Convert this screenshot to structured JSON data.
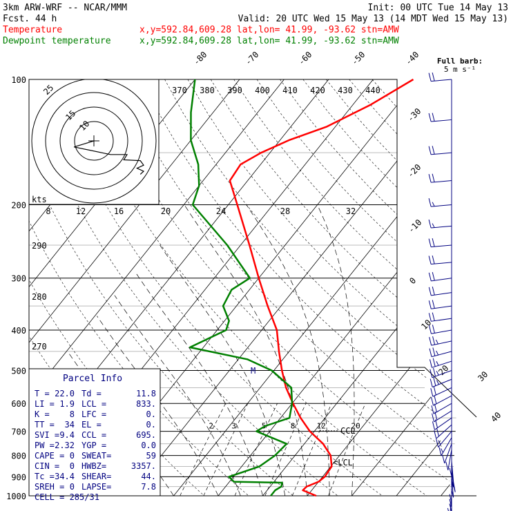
{
  "header": {
    "model": "3km ARW-WRF -- NCAR/MMM",
    "fcst": "Fcst.   44 h",
    "init": "Init: 00 UTC Tue 14 May 13",
    "valid": "Valid: 20 UTC Wed 15 May 13 (14 MDT Wed 15 May 13)",
    "temp_label": "Temperature",
    "dew_label": "Dewpoint temperature",
    "temp_loc": "x,y=592.84,609.28   lat,lon= 41.99, -93.62  stn=AMW",
    "dew_loc": "x,y=592.84,609.28   lat,lon= 41.99, -93.62  stn=AMW",
    "barb_key_1": "Full barb:",
    "barb_key_2": "5 m s⁻¹"
  },
  "colors": {
    "temperature": "#ff0000",
    "dewpoint": "#008000",
    "text_blue": "#000080",
    "header_text": "#000000"
  },
  "chart_data": {
    "type": "line",
    "pressure_levels": [
      "100",
      "200",
      "300",
      "400",
      "500",
      "600",
      "700",
      "800",
      "900",
      "1000"
    ],
    "isotherm_labels": [
      "-80",
      "-70",
      "-60",
      "-50",
      "-40",
      "-30",
      "-20",
      "-10",
      "0",
      "10",
      "20",
      "30",
      "40"
    ],
    "theta_labels": [
      "370",
      "380",
      "390",
      "400",
      "410",
      "420",
      "430",
      "440"
    ],
    "theta_left_labels": [
      "290",
      "280",
      "270"
    ],
    "mixing_ratio_labels": [
      "2",
      "3",
      "5",
      "8",
      "12",
      "20"
    ],
    "hodo_speed_labels": [
      "8",
      "12",
      "16",
      "20",
      "24",
      "28",
      "32"
    ],
    "hodo_ring_labels": [
      "25",
      "15",
      "10"
    ],
    "hodo_unit": "kts",
    "series": [
      {
        "name": "Temperature",
        "points": [
          [
            1000,
            22.0
          ],
          [
            970,
            18.0
          ],
          [
            950,
            18.2
          ],
          [
            925,
            20.0
          ],
          [
            900,
            20.5
          ],
          [
            850,
            20.2
          ],
          [
            800,
            18.0
          ],
          [
            750,
            14.2
          ],
          [
            700,
            9.0
          ],
          [
            650,
            4.5
          ],
          [
            600,
            0.2
          ],
          [
            550,
            -4.2
          ],
          [
            500,
            -8.2
          ],
          [
            450,
            -12.3
          ],
          [
            400,
            -16.6
          ],
          [
            350,
            -23.0
          ],
          [
            300,
            -30.0
          ],
          [
            250,
            -38.0
          ],
          [
            200,
            -48.0
          ],
          [
            175,
            -54.0
          ],
          [
            160,
            -54.5
          ],
          [
            150,
            -52.0
          ],
          [
            140,
            -48.0
          ],
          [
            130,
            -42.0
          ],
          [
            115,
            -36.0
          ],
          [
            100,
            -31.0
          ]
        ]
      },
      {
        "name": "Dewpoint temperature",
        "points": [
          [
            1000,
            11.8
          ],
          [
            970,
            11.8
          ],
          [
            950,
            12.5
          ],
          [
            930,
            12.0
          ],
          [
            925,
            1.0
          ],
          [
            900,
            -1.0
          ],
          [
            850,
            4.0
          ],
          [
            800,
            5.5
          ],
          [
            750,
            6.0
          ],
          [
            700,
            -3.0
          ],
          [
            680,
            -2.0
          ],
          [
            650,
            2.0
          ],
          [
            600,
            0.0
          ],
          [
            550,
            -3.0
          ],
          [
            500,
            -10.5
          ],
          [
            470,
            -18.0
          ],
          [
            440,
            -33.0
          ],
          [
            400,
            -28.0
          ],
          [
            380,
            -29.0
          ],
          [
            350,
            -33.0
          ],
          [
            320,
            -34.0
          ],
          [
            300,
            -32.0
          ],
          [
            250,
            -43.0
          ],
          [
            200,
            -58.0
          ],
          [
            180,
            -60.0
          ],
          [
            160,
            -64.0
          ],
          [
            140,
            -70.0
          ],
          [
            120,
            -75.0
          ],
          [
            100,
            -80.0
          ]
        ]
      }
    ],
    "wind_barbs_mps": [
      [
        100,
        265,
        22
      ],
      [
        125,
        265,
        22
      ],
      [
        150,
        265,
        22
      ],
      [
        175,
        265,
        20
      ],
      [
        200,
        265,
        17
      ],
      [
        225,
        265,
        15
      ],
      [
        250,
        265,
        20
      ],
      [
        275,
        265,
        22
      ],
      [
        300,
        262,
        22
      ],
      [
        325,
        262,
        22
      ],
      [
        350,
        262,
        22
      ],
      [
        375,
        262,
        22
      ],
      [
        400,
        260,
        22
      ],
      [
        425,
        258,
        25
      ],
      [
        450,
        255,
        25
      ],
      [
        475,
        252,
        25
      ],
      [
        500,
        250,
        25
      ],
      [
        525,
        248,
        25
      ],
      [
        550,
        245,
        22
      ],
      [
        575,
        242,
        22
      ],
      [
        600,
        240,
        22
      ],
      [
        625,
        238,
        20
      ],
      [
        650,
        235,
        20
      ],
      [
        675,
        228,
        20
      ],
      [
        700,
        220,
        17
      ],
      [
        725,
        210,
        15
      ],
      [
        750,
        200,
        12
      ],
      [
        775,
        190,
        10
      ],
      [
        800,
        180,
        10
      ],
      [
        825,
        175,
        12
      ],
      [
        850,
        175,
        12
      ],
      [
        875,
        170,
        12
      ],
      [
        900,
        175,
        10
      ],
      [
        925,
        180,
        10
      ],
      [
        950,
        180,
        12
      ],
      [
        975,
        180,
        12
      ],
      [
        1000,
        185,
        10
      ]
    ],
    "annotations": [
      "M",
      "CCL",
      "<LCL"
    ],
    "hodograph_points_kts": [
      [
        0,
        0
      ],
      [
        -12,
        8
      ],
      [
        10,
        18
      ],
      [
        20,
        18
      ],
      [
        18,
        25
      ],
      [
        28,
        26
      ],
      [
        30,
        32
      ],
      [
        26,
        36
      ],
      [
        30,
        40
      ],
      [
        28,
        44
      ]
    ]
  },
  "parcel_info": {
    "title": "Parcel Info",
    "rows": [
      [
        "T  =",
        "22.0",
        "Td =",
        "11.8"
      ],
      [
        "LI =",
        "1.9",
        "LCL =",
        "833."
      ],
      [
        "K  =",
        "8",
        "LFC =",
        "0."
      ],
      [
        "TT =",
        "34",
        "EL  =",
        "0."
      ],
      [
        "SVI =",
        "9.4",
        "CCL =",
        "695."
      ],
      [
        "PW =",
        "2.32",
        "YGP =",
        "0.0"
      ],
      [
        "CAPE =",
        "0",
        "SWEAT=",
        "59"
      ],
      [
        "CIN =",
        "0",
        "HWBZ=",
        "3357."
      ],
      [
        "Tc =",
        "34.4",
        "SHEAR=",
        "44."
      ],
      [
        "SREH =",
        "0",
        "LAPSE=",
        "7.8"
      ]
    ],
    "cell": "CELL = 285/31"
  }
}
